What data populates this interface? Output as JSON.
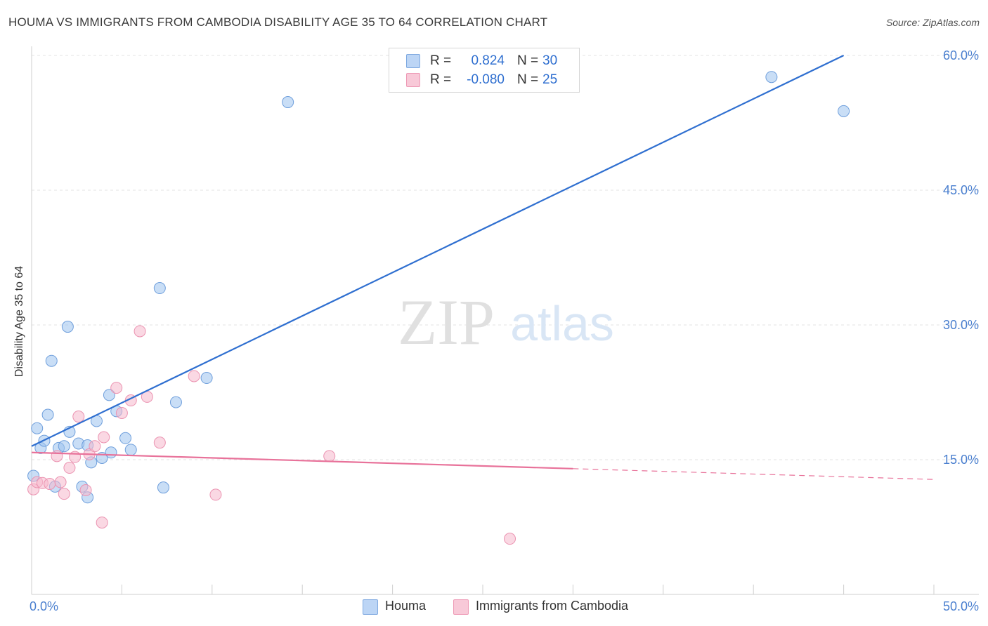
{
  "header": {
    "title": "HOUMA VS IMMIGRANTS FROM CAMBODIA DISABILITY AGE 35 TO 64 CORRELATION CHART",
    "source": "Source: ZipAtlas.com"
  },
  "watermark": {
    "zip": "ZIP",
    "atlas": "atlas"
  },
  "legend": {
    "rows": [
      {
        "r_label": "R =",
        "r_value": "0.824",
        "n_label": "N =",
        "n_value": "30"
      },
      {
        "r_label": "R =",
        "r_value": "-0.080",
        "n_label": "N =",
        "n_value": "25"
      }
    ]
  },
  "bottom_legend": {
    "series1": "Houma",
    "series2": "Immigrants from Cambodia"
  },
  "chart_data": {
    "type": "scatter",
    "title": "HOUMA VS IMMIGRANTS FROM CAMBODIA DISABILITY AGE 35 TO 64 CORRELATION CHART",
    "xlabel": "",
    "ylabel": "Disability Age 35 to 64",
    "xlim": [
      0,
      50
    ],
    "ylim": [
      0,
      60
    ],
    "x_tick_labels": [
      "0.0%",
      "50.0%"
    ],
    "y_ticks": [
      15,
      30,
      45,
      60
    ],
    "y_tick_labels": [
      "15.0%",
      "30.0%",
      "45.0%",
      "60.0%"
    ],
    "grid": true,
    "colors": {
      "houma": "#9dc3ef",
      "houma_line": "#2f6fd0",
      "cambodia": "#f5b8cc",
      "cambodia_line": "#e8729a",
      "tick": "#4a7fcf"
    },
    "series": [
      {
        "name": "Houma",
        "r": 0.824,
        "n": 30,
        "trend": {
          "x": [
            0,
            45
          ],
          "y": [
            16.5,
            60
          ]
        },
        "points": [
          [
            0.1,
            13.2
          ],
          [
            0.3,
            18.5
          ],
          [
            0.5,
            16.3
          ],
          [
            0.7,
            17.1
          ],
          [
            0.9,
            20.0
          ],
          [
            1.1,
            26.0
          ],
          [
            1.3,
            12.0
          ],
          [
            1.5,
            16.3
          ],
          [
            1.8,
            16.5
          ],
          [
            2.0,
            29.8
          ],
          [
            2.1,
            18.1
          ],
          [
            2.6,
            16.8
          ],
          [
            2.8,
            12.0
          ],
          [
            3.1,
            16.6
          ],
          [
            3.1,
            10.8
          ],
          [
            3.3,
            14.7
          ],
          [
            3.6,
            19.3
          ],
          [
            3.9,
            15.2
          ],
          [
            4.3,
            22.2
          ],
          [
            4.4,
            15.8
          ],
          [
            4.7,
            20.4
          ],
          [
            5.2,
            17.4
          ],
          [
            5.5,
            16.1
          ],
          [
            7.1,
            34.1
          ],
          [
            7.3,
            11.9
          ],
          [
            8.0,
            21.4
          ],
          [
            9.7,
            24.1
          ],
          [
            14.2,
            54.8
          ],
          [
            41.0,
            57.6
          ],
          [
            45.0,
            53.8
          ]
        ]
      },
      {
        "name": "Immigrants from Cambodia",
        "r": -0.08,
        "n": 25,
        "trend": {
          "x": [
            0,
            30
          ],
          "y": [
            15.8,
            14.0
          ]
        },
        "trend_dashed": {
          "x": [
            30,
            50
          ],
          "y": [
            14.0,
            12.8
          ]
        },
        "points": [
          [
            0.1,
            11.7
          ],
          [
            0.3,
            12.5
          ],
          [
            0.6,
            12.4
          ],
          [
            1.0,
            12.3
          ],
          [
            1.4,
            15.4
          ],
          [
            1.6,
            12.5
          ],
          [
            1.8,
            11.2
          ],
          [
            2.1,
            14.1
          ],
          [
            2.4,
            15.3
          ],
          [
            2.6,
            19.8
          ],
          [
            3.0,
            11.6
          ],
          [
            3.2,
            15.6
          ],
          [
            3.5,
            16.5
          ],
          [
            3.9,
            8.0
          ],
          [
            4.0,
            17.5
          ],
          [
            4.7,
            23.0
          ],
          [
            5.0,
            20.2
          ],
          [
            5.5,
            21.6
          ],
          [
            6.0,
            29.3
          ],
          [
            6.4,
            22.0
          ],
          [
            7.1,
            16.9
          ],
          [
            9.0,
            24.3
          ],
          [
            10.2,
            11.1
          ],
          [
            16.5,
            15.4
          ],
          [
            26.5,
            6.2
          ]
        ]
      }
    ]
  }
}
